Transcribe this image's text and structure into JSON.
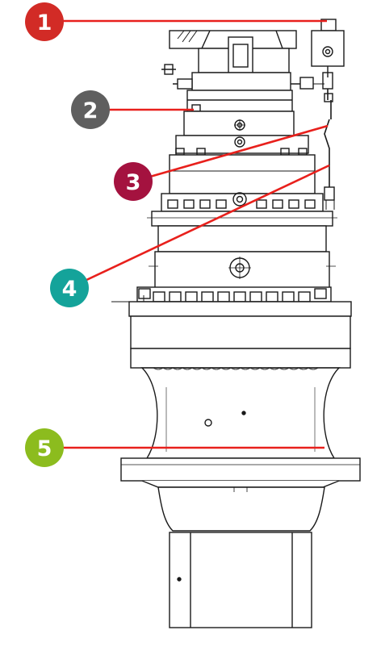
{
  "callouts": [
    {
      "number": "1",
      "color": "#d22b26",
      "line_color": "#e8201c"
    },
    {
      "number": "2",
      "color": "#5f5f5f",
      "line_color": "#e8201c"
    },
    {
      "number": "3",
      "color": "#a4123f",
      "line_color": "#e8201c"
    },
    {
      "number": "4",
      "color": "#14a39a",
      "line_color": "#e8201c"
    },
    {
      "number": "5",
      "color": "#8cbc1e",
      "line_color": "#e8201c"
    }
  ],
  "drawing": {
    "line_color": "#1a1a1a",
    "background": "#ffffff"
  }
}
